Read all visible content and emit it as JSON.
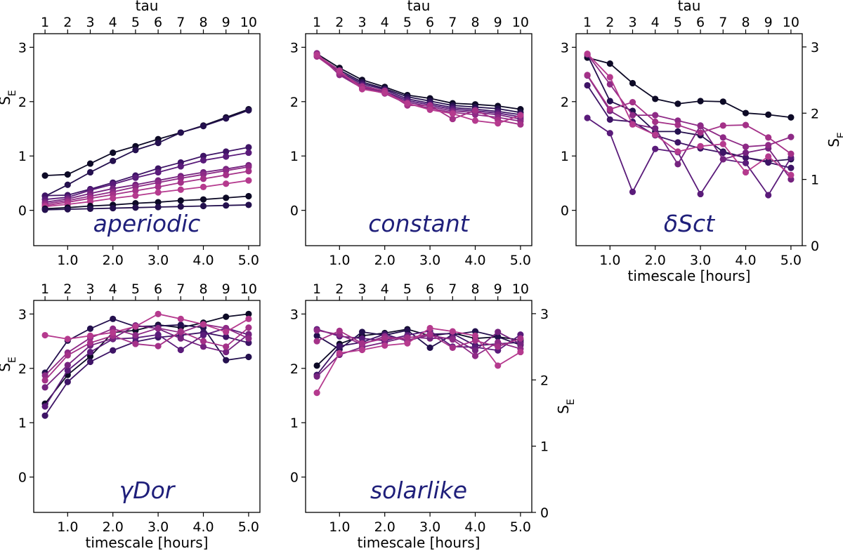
{
  "chart_data": {
    "type": "line",
    "x_label": "timescale [hours]",
    "top_label": "tau",
    "y_label_main": "S",
    "y_label_sub": "E",
    "x_ticks": [
      "1.0",
      "2.0",
      "3.0",
      "4.0",
      "5.0"
    ],
    "top_ticks": [
      "1",
      "2",
      "3",
      "4",
      "5",
      "6",
      "7",
      "8",
      "9",
      "10"
    ],
    "y_ticks": [
      "0",
      "1",
      "2",
      "3"
    ],
    "x": [
      0.5,
      1.0,
      1.5,
      2.0,
      2.5,
      3.0,
      3.5,
      4.0,
      4.5,
      5.0
    ],
    "xlim": [
      0.25,
      5.25
    ],
    "ylim": [
      -0.65,
      3.25
    ],
    "palette": [
      "#0d0a26",
      "#24104e",
      "#3e1466",
      "#5a1b7a",
      "#75237f",
      "#8e2a86",
      "#a43188",
      "#b53a8e"
    ],
    "panels": [
      {
        "title": "aperiodic",
        "show_xlabel": false,
        "right_axis": false,
        "series": [
          {
            "values": [
              0.64,
              0.66,
              0.86,
              1.06,
              1.18,
              1.31,
              1.43,
              1.56,
              1.71,
              1.86
            ]
          },
          {
            "values": [
              0.26,
              0.47,
              0.7,
              0.91,
              1.11,
              1.24,
              1.43,
              1.55,
              1.69,
              1.84
            ]
          },
          {
            "values": [
              0.27,
              0.28,
              0.39,
              0.51,
              0.64,
              0.77,
              0.88,
              1.0,
              1.08,
              1.16
            ]
          },
          {
            "values": [
              0.2,
              0.24,
              0.37,
              0.48,
              0.6,
              0.7,
              0.81,
              0.92,
              0.99,
              1.06
            ]
          },
          {
            "values": [
              0.15,
              0.21,
              0.31,
              0.4,
              0.47,
              0.55,
              0.63,
              0.7,
              0.76,
              0.83
            ]
          },
          {
            "values": [
              0.12,
              0.18,
              0.26,
              0.34,
              0.43,
              0.51,
              0.59,
              0.66,
              0.73,
              0.8
            ]
          },
          {
            "values": [
              0.09,
              0.15,
              0.22,
              0.29,
              0.36,
              0.43,
              0.51,
              0.58,
              0.65,
              0.72
            ]
          },
          {
            "values": [
              0.07,
              0.11,
              0.16,
              0.22,
              0.27,
              0.33,
              0.38,
              0.43,
              0.49,
              0.55
            ]
          },
          {
            "values": [
              0.03,
              0.05,
              0.08,
              0.1,
              0.13,
              0.15,
              0.18,
              0.2,
              0.23,
              0.26
            ]
          },
          {
            "values": [
              0.01,
              0.02,
              0.03,
              0.04,
              0.05,
              0.06,
              0.07,
              0.08,
              0.09,
              0.1
            ]
          }
        ]
      },
      {
        "title": "constant",
        "show_xlabel": false,
        "right_axis": false,
        "series": [
          {
            "values": [
              2.88,
              2.62,
              2.4,
              2.27,
              2.12,
              2.06,
              1.97,
              1.95,
              1.92,
              1.86
            ]
          },
          {
            "values": [
              2.85,
              2.58,
              2.36,
              2.24,
              2.09,
              2.01,
              1.93,
              1.9,
              1.87,
              1.8
            ]
          },
          {
            "values": [
              2.86,
              2.55,
              2.33,
              2.22,
              2.05,
              1.97,
              1.89,
              1.86,
              1.82,
              1.76
            ]
          },
          {
            "values": [
              2.84,
              2.52,
              2.3,
              2.19,
              2.02,
              1.94,
              1.86,
              1.83,
              1.79,
              1.72
            ]
          },
          {
            "values": [
              2.87,
              2.5,
              2.27,
              2.17,
              1.99,
              1.91,
              1.83,
              1.8,
              1.76,
              1.68
            ]
          },
          {
            "values": [
              2.89,
              2.49,
              2.25,
              2.15,
              1.96,
              1.88,
              1.8,
              1.76,
              1.71,
              1.64
            ]
          },
          {
            "values": [
              2.83,
              2.53,
              2.28,
              2.2,
              1.93,
              1.93,
              1.68,
              1.84,
              1.66,
              1.58
            ]
          },
          {
            "values": [
              2.86,
              2.57,
              2.23,
              2.16,
              1.97,
              1.85,
              1.78,
              1.65,
              1.6,
              1.75
            ]
          }
        ]
      },
      {
        "title": "δSct",
        "show_xlabel": true,
        "right_axis": true,
        "series": [
          {
            "values": [
              2.81,
              2.7,
              2.34,
              2.05,
              1.96,
              2.01,
              2.0,
              1.79,
              1.76,
              1.71
            ]
          },
          {
            "values": [
              2.86,
              2.01,
              1.83,
              1.45,
              1.45,
              1.38,
              1.08,
              0.97,
              0.9,
              0.94
            ]
          },
          {
            "values": [
              2.3,
              1.67,
              1.63,
              1.38,
              1.25,
              1.14,
              1.06,
              0.97,
              0.88,
              0.78
            ]
          },
          {
            "values": [
              1.7,
              1.42,
              0.34,
              1.13,
              1.07,
              0.3,
              0.94,
              0.87,
              0.28,
              0.97
            ]
          },
          {
            "values": [
              2.48,
              1.83,
              1.59,
              1.51,
              0.85,
              1.56,
              0.94,
              1.06,
              1.14,
              0.57
            ]
          },
          {
            "values": [
              2.87,
              2.32,
              1.75,
              1.75,
              1.65,
              1.55,
              1.34,
              1.17,
              1.2,
              1.35
            ]
          },
          {
            "values": [
              2.49,
              1.86,
              1.99,
              1.63,
              1.57,
              1.43,
              1.56,
              1.57,
              1.34,
              1.04
            ]
          },
          {
            "values": [
              2.88,
              2.45,
              1.58,
              1.39,
              1.08,
              1.18,
              1.22,
              0.7,
              0.99,
              0.65
            ]
          }
        ]
      },
      {
        "title": "γDor",
        "show_xlabel": true,
        "right_axis": false,
        "series": [
          {
            "values": [
              1.35,
              1.88,
              2.22,
              2.66,
              2.7,
              2.8,
              2.75,
              2.84,
              2.95,
              3.0
            ]
          },
          {
            "values": [
              1.92,
              2.51,
              2.73,
              2.91,
              2.77,
              2.78,
              2.8,
              2.75,
              2.15,
              2.21
            ]
          },
          {
            "values": [
              1.13,
              1.75,
              2.12,
              2.33,
              2.49,
              2.57,
              2.61,
              2.66,
              2.58,
              2.47
            ]
          },
          {
            "values": [
              1.3,
              1.96,
              2.3,
              2.54,
              2.56,
              2.62,
              2.34,
              2.61,
              2.74,
              2.62
            ]
          },
          {
            "values": [
              1.65,
              2.06,
              2.42,
              2.55,
              2.79,
              2.73,
              2.55,
              2.4,
              2.3,
              2.63
            ]
          },
          {
            "values": [
              1.87,
              2.29,
              2.56,
              2.73,
              2.61,
              2.74,
              2.66,
              2.81,
              2.74,
              2.55
            ]
          },
          {
            "values": [
              1.78,
              2.24,
              2.47,
              2.6,
              2.45,
              2.41,
              2.68,
              2.5,
              2.4,
              2.75
            ]
          },
          {
            "values": [
              2.61,
              2.54,
              2.6,
              2.66,
              2.77,
              3.0,
              2.91,
              2.81,
              2.67,
              2.91
            ]
          }
        ]
      },
      {
        "title": "solarlike",
        "show_xlabel": true,
        "right_axis": true,
        "series": [
          {
            "values": [
              2.05,
              2.45,
              2.6,
              2.65,
              2.72,
              2.6,
              2.65,
              2.55,
              2.58,
              2.52
            ]
          },
          {
            "values": [
              2.6,
              2.35,
              2.67,
              2.61,
              2.7,
              2.38,
              2.62,
              2.68,
              2.58,
              2.43
            ]
          },
          {
            "values": [
              1.88,
              2.41,
              2.48,
              2.63,
              2.5,
              2.63,
              2.64,
              2.42,
              2.45,
              2.48
            ]
          },
          {
            "values": [
              2.72,
              2.59,
              2.55,
              2.51,
              2.61,
              2.69,
              2.4,
              2.39,
              2.33,
              2.62
            ]
          },
          {
            "values": [
              1.85,
              2.25,
              2.39,
              2.48,
              2.58,
              2.55,
              2.56,
              2.33,
              2.67,
              2.45
            ]
          },
          {
            "values": [
              2.7,
              2.62,
              2.44,
              2.59,
              2.52,
              2.61,
              2.53,
              2.23,
              2.48,
              2.36
            ]
          },
          {
            "values": [
              2.5,
              2.69,
              2.46,
              2.55,
              2.56,
              2.63,
              2.38,
              2.51,
              2.4,
              2.55
            ]
          },
          {
            "values": [
              1.55,
              2.28,
              2.34,
              2.42,
              2.46,
              2.74,
              2.68,
              2.6,
              2.05,
              2.3
            ]
          }
        ]
      }
    ]
  }
}
